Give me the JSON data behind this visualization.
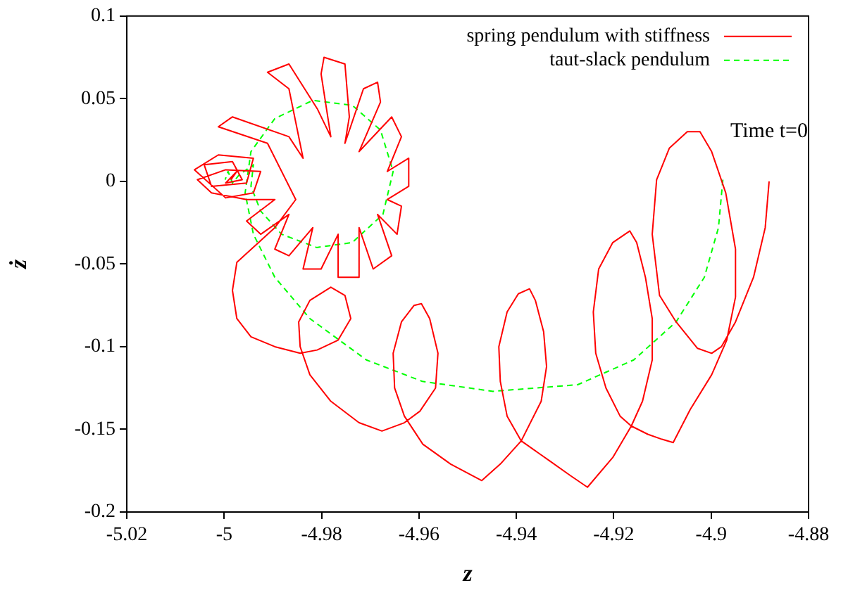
{
  "chart_data": {
    "type": "line",
    "xlabel": "z",
    "ylabel": "ż",
    "xlim": [
      -5.02,
      -4.88
    ],
    "xticks": [
      -5.02,
      -5,
      -4.98,
      -4.96,
      -4.94,
      -4.92,
      -4.9,
      -4.88
    ],
    "ylim": [
      -0.2,
      0.1
    ],
    "yticks": [
      -0.2,
      -0.15,
      -0.1,
      -0.05,
      0,
      0.05,
      0.1
    ],
    "grid": false,
    "legend": "top right",
    "marker": "none",
    "annotations": [
      {
        "text": "Time t=0",
        "x": -4.8881,
        "y": 0
      }
    ],
    "series": [
      {
        "name": "spring pendulum with stiffness",
        "color": "#ff0000",
        "line_style": "solid",
        "x": [
          -4.8881,
          -4.8889,
          -4.8913,
          -4.895,
          -4.8979,
          -4.8999,
          -4.9028,
          -4.9072,
          -4.9106,
          -4.9121,
          -4.9112,
          -4.9086,
          -4.9049,
          -4.9023,
          -4.8999,
          -4.897,
          -4.895,
          -4.895,
          -4.8968,
          -4.8999,
          -4.9043,
          -4.9078,
          -4.9101,
          -4.913,
          -4.9164,
          -4.9187,
          -4.9216,
          -4.9237,
          -4.9242,
          -4.9231,
          -4.9202,
          -4.9167,
          -4.9153,
          -4.9135,
          -4.9121,
          -4.9121,
          -4.9141,
          -4.9164,
          -4.9202,
          -4.9254,
          -4.9289,
          -4.9332,
          -4.939,
          -4.9419,
          -4.9433,
          -4.9436,
          -4.9419,
          -4.9396,
          -4.9373,
          -4.9361,
          -4.9344,
          -4.9338,
          -4.9349,
          -4.939,
          -4.9433,
          -4.9471,
          -4.9535,
          -4.9592,
          -4.963,
          -4.965,
          -4.9653,
          -4.9636,
          -4.961,
          -4.9595,
          -4.9578,
          -4.9561,
          -4.9566,
          -4.9598,
          -4.963,
          -4.9676,
          -4.9723,
          -4.9781,
          -4.9824,
          -4.9844,
          -4.9847,
          -4.9824,
          -4.9781,
          -4.9752,
          -4.974,
          -4.9766,
          -4.9809,
          -4.9844,
          -4.9896,
          -4.9945,
          -4.9974,
          -4.9983,
          -4.9974,
          -4.9896,
          -4.9853,
          -4.9911,
          -5.0012,
          -4.9983,
          -4.9867,
          -4.9838,
          -4.9867,
          -4.9911,
          -4.9867,
          -4.9809,
          -4.9781,
          -4.9801,
          -4.9795,
          -4.9752,
          -4.9743,
          -4.9752,
          -4.9714,
          -4.9685,
          -4.9679,
          -4.9723,
          -4.9656,
          -4.9636,
          -4.9665,
          -4.9621,
          -4.9621,
          -4.9665,
          -4.9636,
          -4.9645,
          -4.9685,
          -4.9656,
          -4.9694,
          -4.9723,
          -4.9723,
          -4.9766,
          -4.9766,
          -4.9801,
          -4.9838,
          -4.9818,
          -4.9867,
          -4.9896,
          -4.9867,
          -4.9925,
          -4.9954,
          -4.9896,
          -4.9954,
          -5.0026,
          -5.0055,
          -4.9997,
          -4.9925,
          -4.994,
          -4.9997,
          -5.0061,
          -5.0012,
          -4.994,
          -4.9954,
          -5.0026,
          -5.0041,
          -4.9983,
          -4.9963,
          -4.9997,
          -4.9974,
          -4.9986
        ],
        "values": [
          0,
          -0.028,
          -0.058,
          -0.085,
          -0.1,
          -0.104,
          -0.101,
          -0.085,
          -0.069,
          -0.032,
          0.001,
          0.02,
          0.03,
          0.03,
          0.018,
          -0.007,
          -0.041,
          -0.07,
          -0.096,
          -0.117,
          -0.138,
          -0.158,
          -0.156,
          -0.153,
          -0.148,
          -0.142,
          -0.125,
          -0.104,
          -0.079,
          -0.053,
          -0.037,
          -0.03,
          -0.037,
          -0.058,
          -0.083,
          -0.108,
          -0.133,
          -0.148,
          -0.167,
          -0.185,
          -0.178,
          -0.169,
          -0.157,
          -0.142,
          -0.121,
          -0.1,
          -0.079,
          -0.068,
          -0.065,
          -0.072,
          -0.091,
          -0.112,
          -0.133,
          -0.157,
          -0.171,
          -0.181,
          -0.171,
          -0.159,
          -0.142,
          -0.125,
          -0.104,
          -0.085,
          -0.075,
          -0.074,
          -0.083,
          -0.104,
          -0.125,
          -0.139,
          -0.146,
          -0.151,
          -0.146,
          -0.133,
          -0.117,
          -0.1,
          -0.085,
          -0.072,
          -0.064,
          -0.069,
          -0.083,
          -0.096,
          -0.102,
          -0.104,
          -0.1,
          -0.094,
          -0.083,
          -0.066,
          -0.049,
          -0.028,
          -0.011,
          0.023,
          0.033,
          0.039,
          0.027,
          0.014,
          0.056,
          0.066,
          0.071,
          0.044,
          0.027,
          0.065,
          0.075,
          0.071,
          0.039,
          0.023,
          0.056,
          0.06,
          0.048,
          0.018,
          0.039,
          0.027,
          0.006,
          0.014,
          -0.003,
          -0.011,
          -0.015,
          -0.032,
          -0.02,
          -0.045,
          -0.053,
          -0.028,
          -0.058,
          -0.058,
          -0.032,
          -0.053,
          -0.053,
          -0.028,
          -0.045,
          -0.041,
          -0.02,
          -0.032,
          -0.024,
          -0.011,
          -0.011,
          -0.007,
          0.001,
          0.007,
          0.006,
          -0.007,
          -0.01,
          0.007,
          0.016,
          0.014,
          -0.001,
          -0.003,
          0.01,
          0.012,
          0.001,
          -0.001,
          0.006,
          0.001
        ]
      },
      {
        "name": "taut-slack pendulum",
        "color": "#00ff00",
        "line_style": "dashed",
        "x": [
          -4.8976,
          -4.8985,
          -4.9014,
          -4.9072,
          -4.9159,
          -4.9274,
          -4.9448,
          -4.9593,
          -4.9708,
          -4.9824,
          -4.9896,
          -4.994,
          -4.9957,
          -4.9945,
          -4.9896,
          -4.9818,
          -4.9737,
          -4.9679,
          -4.9653,
          -4.9674,
          -4.9737,
          -4.981,
          -4.9882,
          -4.9925,
          -4.9945,
          -4.994,
          -4.9969,
          -4.9983,
          -4.9992,
          -4.9998
        ],
        "values": [
          0.001,
          -0.028,
          -0.058,
          -0.085,
          -0.108,
          -0.123,
          -0.127,
          -0.121,
          -0.108,
          -0.083,
          -0.058,
          -0.032,
          -0.007,
          0.018,
          0.038,
          0.049,
          0.046,
          0.031,
          0.006,
          -0.02,
          -0.037,
          -0.04,
          -0.032,
          -0.018,
          -0.003,
          0.01,
          0.004,
          -0.001,
          0.006,
          0.001
        ]
      }
    ]
  }
}
